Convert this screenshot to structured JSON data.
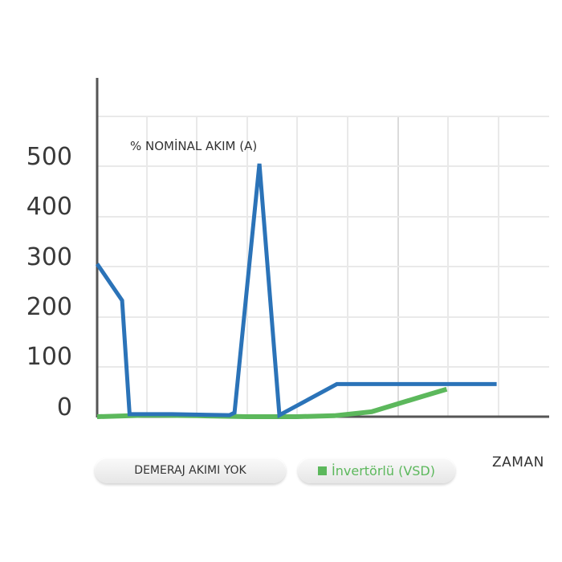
{
  "colors": {
    "background": "#ffffff",
    "grid": "#e9e9e9",
    "axis": "#555555",
    "series_blue": "#2b73b8",
    "series_green": "#5cb85c"
  },
  "legend": {
    "button_no_current": "DEMERAJ AKIMI YOK",
    "button_vsd": "İnvertörlü (VSD)"
  },
  "chart_data": {
    "type": "line",
    "title": "",
    "annotation": "% NOMİNAL AKIM (A)",
    "xlabel": "ZAMAN",
    "ylabel": "",
    "yticks": [
      "500",
      "400",
      "300",
      "200",
      "100",
      "0"
    ],
    "ylim": [
      0,
      600
    ],
    "xlim": [
      0,
      18
    ],
    "grid": true,
    "legend_position": "bottom",
    "series": [
      {
        "color": "#2b73b8",
        "points": [
          [
            0,
            305
          ],
          [
            1,
            232
          ],
          [
            1.3,
            5
          ],
          [
            3,
            5
          ],
          [
            5.3,
            3
          ],
          [
            5.5,
            8
          ],
          [
            6.5,
            505
          ],
          [
            7.3,
            3
          ],
          [
            9.6,
            65
          ],
          [
            16,
            65
          ]
        ]
      },
      {
        "color": "#5cb85c",
        "points": [
          [
            0,
            0
          ],
          [
            2,
            3
          ],
          [
            4,
            2
          ],
          [
            6,
            0
          ],
          [
            8,
            0
          ],
          [
            9.5,
            2
          ],
          [
            11,
            10
          ],
          [
            12,
            25
          ],
          [
            13,
            40
          ],
          [
            14,
            55
          ]
        ]
      }
    ]
  }
}
